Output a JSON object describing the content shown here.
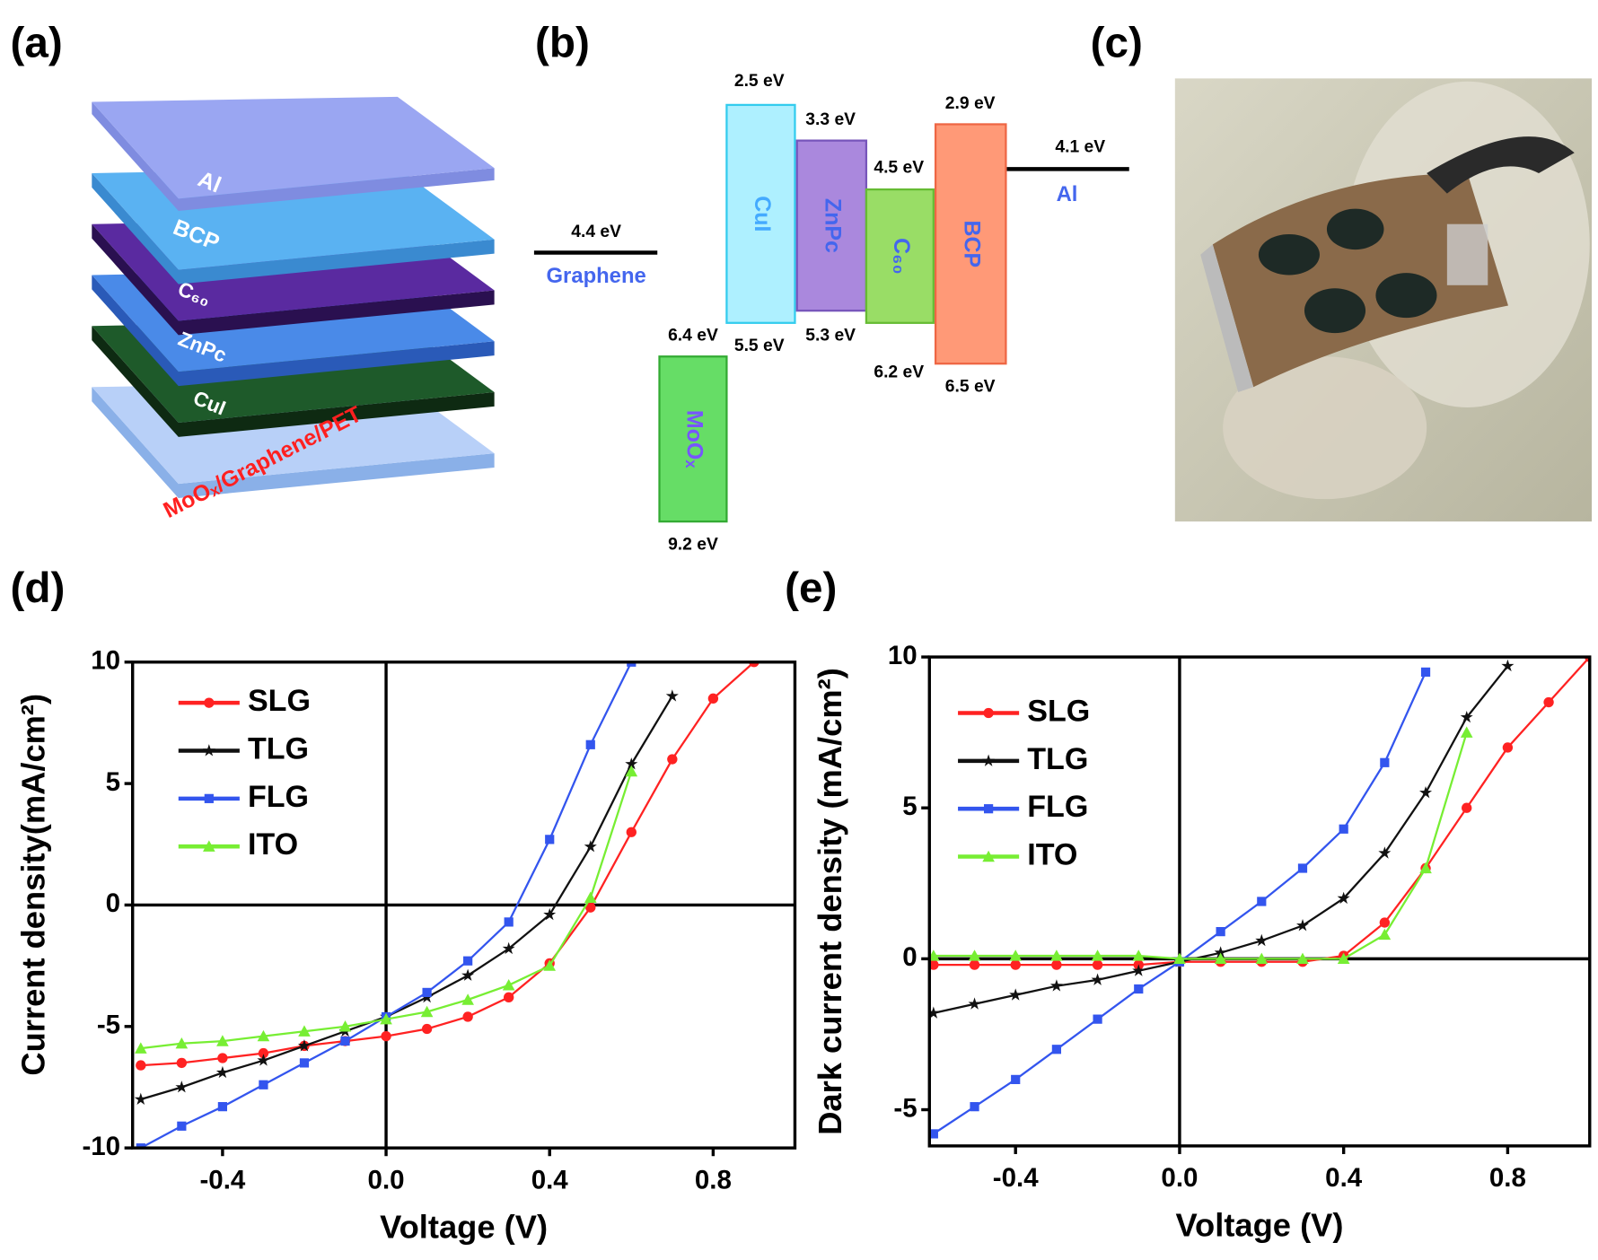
{
  "panel_labels": [
    "(a)",
    "(b)",
    "(c)",
    "(d)",
    "(e)"
  ],
  "layer_stack": {
    "layers": [
      "Al",
      "BCP",
      "C₆₀",
      "ZnPc",
      "CuI",
      "MoOₓ/Graphene/PET"
    ]
  },
  "energy_diagram": {
    "materials": [
      {
        "name": "MoOₓ",
        "top": "6.4 eV",
        "bottom": "9.2 eV"
      },
      {
        "name": "CuI",
        "top": "2.5 eV",
        "bottom": "5.5 eV"
      },
      {
        "name": "ZnPc",
        "top": "3.3 eV",
        "bottom": "5.3 eV"
      },
      {
        "name": "C₆₀",
        "top": "4.5 eV",
        "bottom": "6.2 eV"
      },
      {
        "name": "BCP",
        "top": "2.9 eV",
        "bottom": "6.5 eV"
      }
    ],
    "electrodes": [
      {
        "name": "Graphene",
        "level": "4.4 eV"
      },
      {
        "name": "Al",
        "level": "4.1 eV"
      }
    ]
  },
  "chart_data": [
    {
      "type": "line",
      "x_label": "Voltage (V)",
      "y_label": "Current density(mA/cm²)",
      "x": [
        -0.6,
        -0.5,
        -0.4,
        -0.3,
        -0.2,
        -0.1,
        0,
        0.1,
        0.2,
        0.3,
        0.4,
        0.5,
        0.6,
        0.7,
        0.8,
        0.9,
        1.0
      ],
      "xlim": [
        -0.62,
        1.0
      ],
      "ylim": [
        -10,
        10
      ],
      "xticks": [
        -0.4,
        {
          "value": 0,
          "label": "0.0"
        },
        0.4,
        0.8
      ],
      "yticks": [
        -10,
        -5,
        0,
        5,
        10
      ],
      "zero_lines": true,
      "legend": "upper left",
      "series": [
        {
          "name": "SLG",
          "color": "#ff2222",
          "marker": "circle",
          "values": [
            -6.6,
            -6.5,
            -6.3,
            -6.1,
            -5.8,
            -5.6,
            -5.4,
            -5.1,
            -4.6,
            -3.8,
            -2.4,
            -0.1,
            3.0,
            6.0,
            8.5,
            10,
            null
          ]
        },
        {
          "name": "TLG",
          "color": "#111111",
          "marker": "star",
          "values": [
            -8.0,
            -7.5,
            -6.9,
            -6.4,
            -5.8,
            -5.2,
            -4.6,
            -3.8,
            -2.9,
            -1.8,
            -0.4,
            2.4,
            5.8,
            8.6,
            null,
            null,
            null
          ]
        },
        {
          "name": "FLG",
          "color": "#3355ee",
          "marker": "square",
          "values": [
            -10,
            -9.1,
            -8.3,
            -7.4,
            -6.5,
            -5.6,
            -4.6,
            -3.6,
            -2.3,
            -0.7,
            2.7,
            6.6,
            10,
            null,
            null,
            null,
            null
          ]
        },
        {
          "name": "ITO",
          "color": "#77ee33",
          "marker": "triangle",
          "values": [
            -5.9,
            -5.7,
            -5.6,
            -5.4,
            -5.2,
            -5.0,
            -4.7,
            -4.4,
            -3.9,
            -3.3,
            -2.5,
            0.3,
            5.5,
            null,
            null,
            null,
            null
          ]
        }
      ]
    },
    {
      "type": "line",
      "x_label": "Voltage (V)",
      "y_label": "Dark current density (mA/cm²)",
      "x": [
        -0.6,
        -0.5,
        -0.4,
        -0.3,
        -0.2,
        -0.1,
        0,
        0.1,
        0.2,
        0.3,
        0.4,
        0.5,
        0.6,
        0.7,
        0.8,
        0.9,
        1.0
      ],
      "xlim": [
        -0.61,
        1.0
      ],
      "ylim": [
        -6.2,
        10
      ],
      "xticks": [
        -0.4,
        {
          "value": 0,
          "label": "0.0"
        },
        0.4,
        0.8
      ],
      "yticks": [
        -5,
        0,
        5,
        10
      ],
      "zero_lines": true,
      "legend": "upper left",
      "series": [
        {
          "name": "SLG",
          "color": "#ff2222",
          "marker": "circle",
          "values": [
            -0.2,
            -0.2,
            -0.2,
            -0.2,
            -0.2,
            -0.2,
            -0.1,
            -0.1,
            -0.1,
            -0.1,
            0.1,
            1.2,
            3.0,
            5.0,
            7.0,
            8.5,
            10
          ]
        },
        {
          "name": "TLG",
          "color": "#111111",
          "marker": "star",
          "values": [
            -1.8,
            -1.5,
            -1.2,
            -0.9,
            -0.7,
            -0.4,
            -0.1,
            0.2,
            0.6,
            1.1,
            2.0,
            3.5,
            5.5,
            8.0,
            9.7,
            null,
            null
          ]
        },
        {
          "name": "FLG",
          "color": "#3355ee",
          "marker": "square",
          "values": [
            -5.8,
            -4.9,
            -4.0,
            -3.0,
            -2.0,
            -1.0,
            -0.1,
            0.9,
            1.9,
            3.0,
            4.3,
            6.5,
            9.5,
            null,
            null,
            null,
            null
          ]
        },
        {
          "name": "ITO",
          "color": "#77ee33",
          "marker": "triangle",
          "values": [
            0.1,
            0.1,
            0.1,
            0.1,
            0.1,
            0.1,
            0,
            0,
            0,
            0,
            0,
            0.8,
            3.0,
            7.5,
            null,
            null,
            null
          ]
        }
      ]
    }
  ]
}
